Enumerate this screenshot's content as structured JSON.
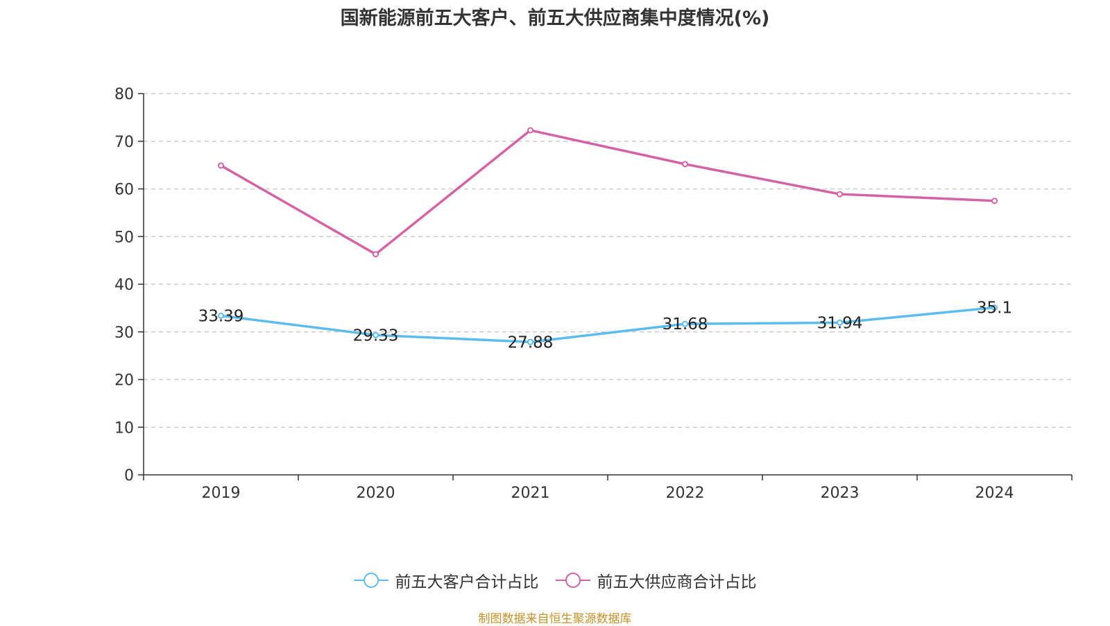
{
  "chart_data": {
    "type": "line",
    "title": "国新能源前五大客户、前五大供应商集中度情况(%)",
    "categories": [
      "2019",
      "2020",
      "2021",
      "2022",
      "2023",
      "2024"
    ],
    "ylim": [
      0,
      80
    ],
    "yticks": [
      0,
      10,
      20,
      30,
      40,
      50,
      60,
      70,
      80
    ],
    "grid": true,
    "legend_position": "bottom",
    "series": [
      {
        "name": "前五大客户合计占比",
        "color": "#5bbcef",
        "values": [
          33.39,
          29.33,
          27.88,
          31.68,
          31.94,
          35.1
        ],
        "data_labels": [
          "33.39",
          "29.33",
          "27.88",
          "31.68",
          "31.94",
          "35.1"
        ]
      },
      {
        "name": "前五大供应商合计占比",
        "color": "#d462a6",
        "values": [
          64.9,
          46.3,
          72.3,
          65.2,
          58.9,
          57.5
        ]
      }
    ]
  },
  "footer": {
    "source": "制图数据来自恒生聚源数据库"
  }
}
